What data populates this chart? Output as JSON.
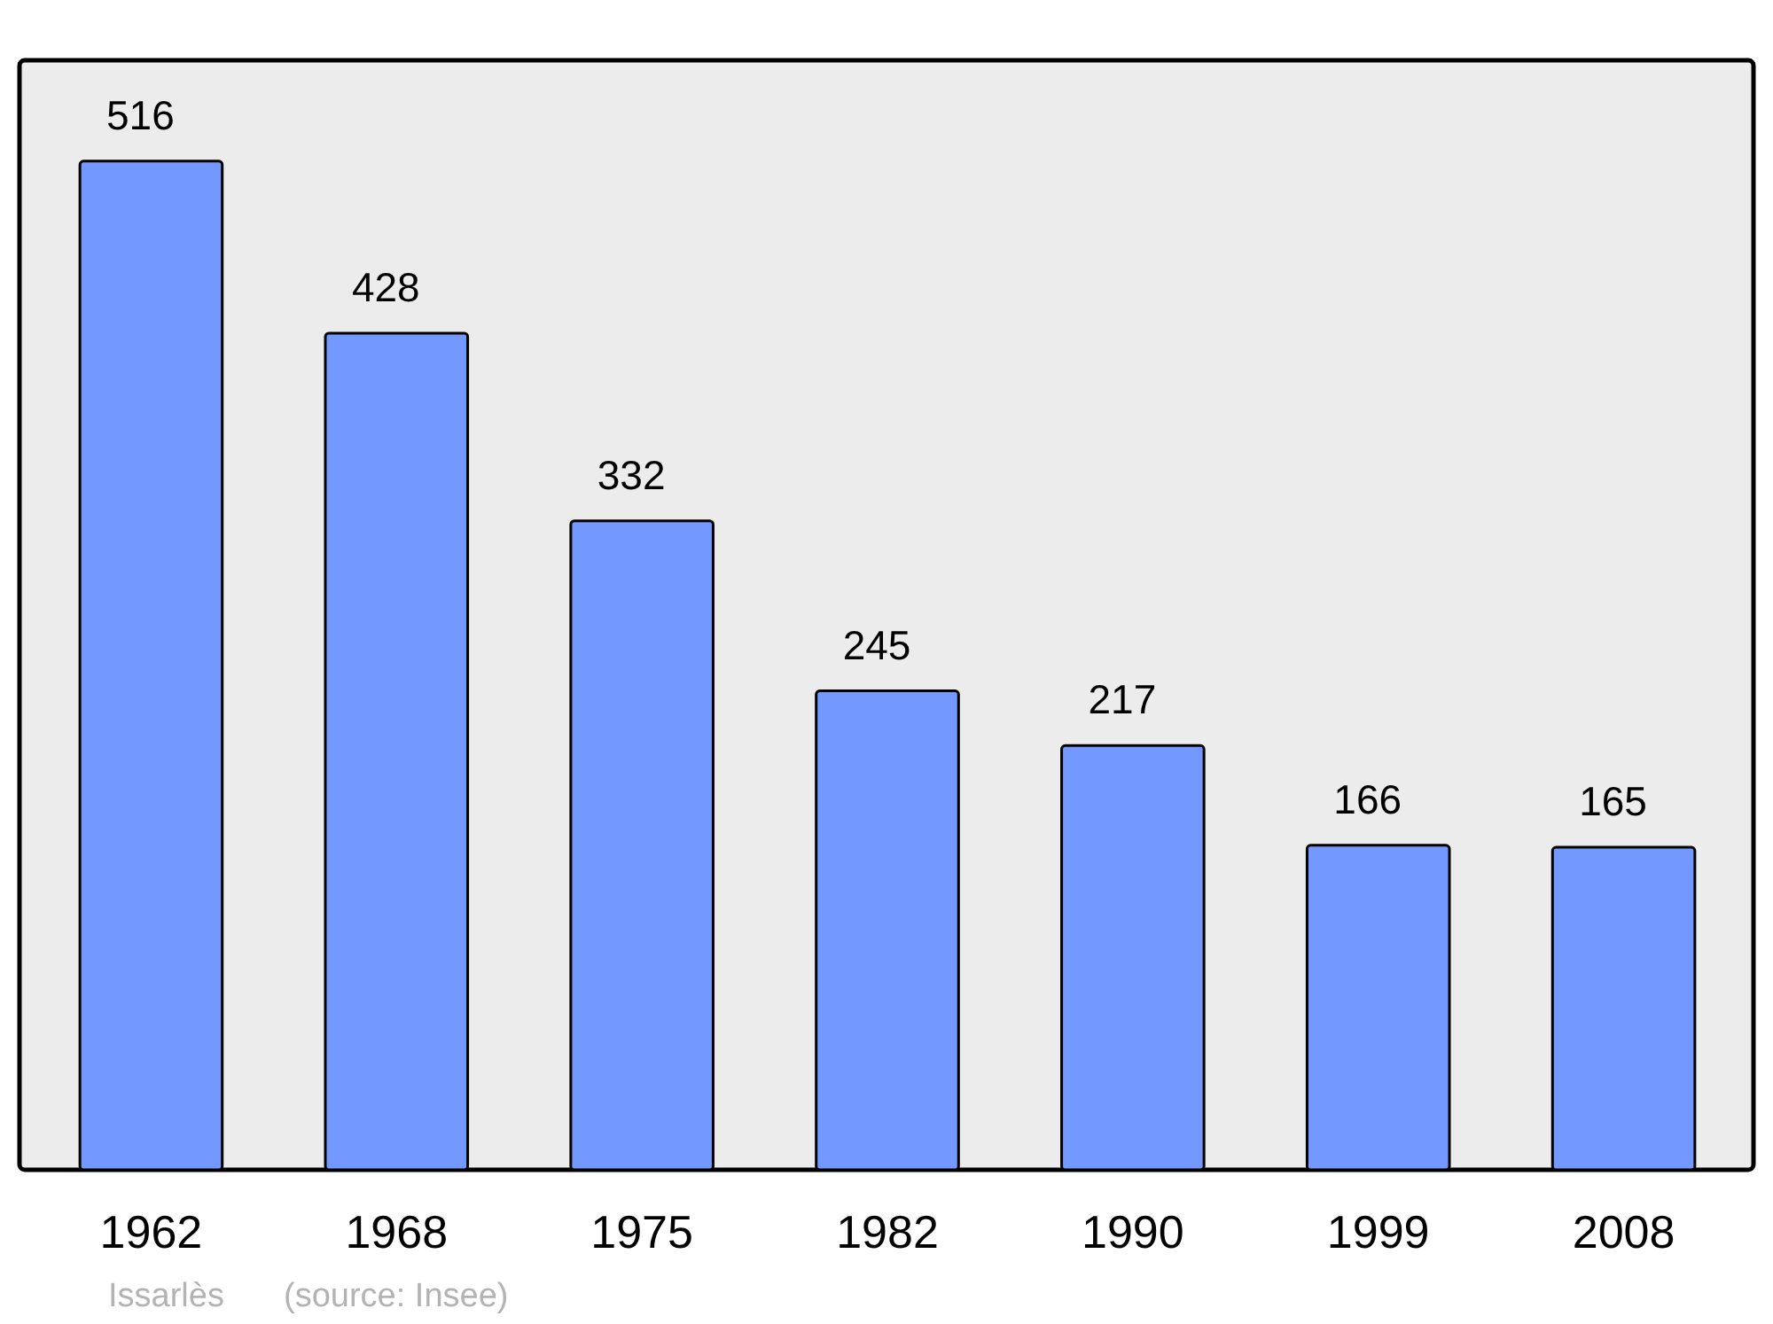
{
  "chart_data": {
    "type": "bar",
    "categories": [
      "1962",
      "1968",
      "1975",
      "1982",
      "1990",
      "1999",
      "2008"
    ],
    "values": [
      516,
      428,
      332,
      245,
      217,
      166,
      165
    ],
    "color": "#7399ff",
    "data_labels": true,
    "annotations": [
      "Issarlès",
      "(source: Insee)"
    ]
  }
}
